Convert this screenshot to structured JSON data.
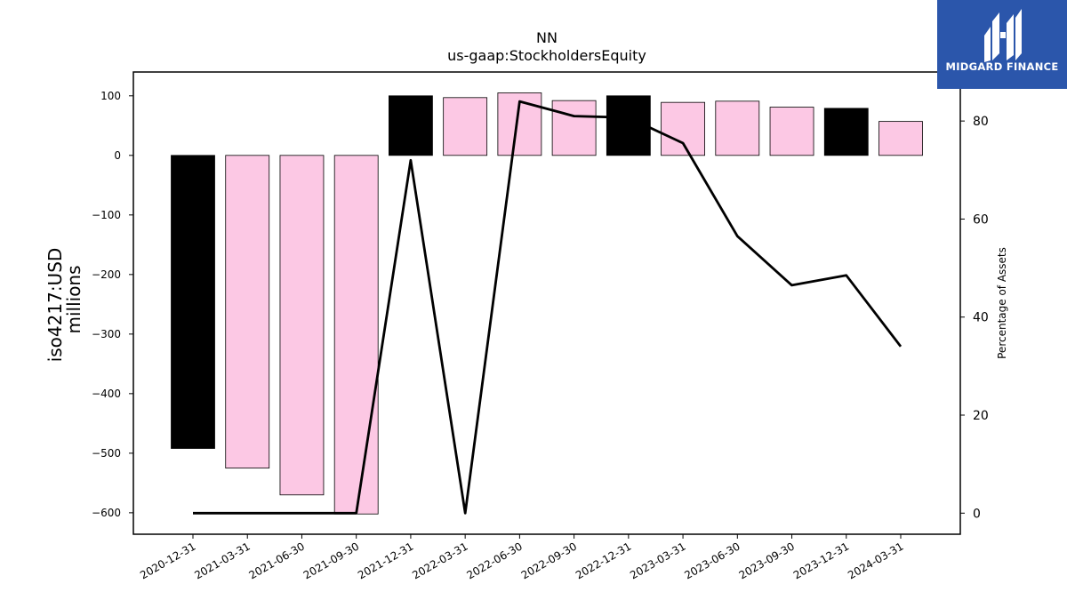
{
  "chart_data": {
    "type": "bar",
    "title": "NN",
    "subtitle": "us-gaap:StockholdersEquity",
    "ylabel": "iso4217:USD",
    "ylabel2": "millions",
    "y2label": "Percentage of Assets",
    "categories": [
      "2020-12-31",
      "2021-03-31",
      "2021-06-30",
      "2021-09-30",
      "2021-12-31",
      "2022-03-31",
      "2022-06-30",
      "2022-09-30",
      "2022-12-31",
      "2023-03-31",
      "2023-06-30",
      "2023-09-30",
      "2023-12-31",
      "2024-03-31"
    ],
    "series": [
      {
        "type": "bar",
        "axis": "left",
        "values": [
          -492,
          -525,
          -570,
          -602,
          100,
          97,
          105,
          92,
          100,
          89,
          91,
          81,
          79,
          57
        ],
        "colors": [
          "#000000",
          "#fcc8e4",
          "#fcc8e4",
          "#fcc8e4",
          "#000000",
          "#fcc8e4",
          "#fcc8e4",
          "#fcc8e4",
          "#000000",
          "#fcc8e4",
          "#fcc8e4",
          "#fcc8e4",
          "#000000",
          "#fcc8e4"
        ]
      },
      {
        "type": "line",
        "axis": "right",
        "color": "#000000",
        "values": [
          0,
          0,
          0,
          0,
          72,
          0,
          84,
          81,
          80.7,
          75.5,
          56.5,
          46.5,
          48.5,
          34
        ]
      }
    ],
    "ylim": [
      -636,
      140
    ],
    "y2lim": [
      -4.3,
      90
    ],
    "yticks": [
      100,
      0,
      -100,
      -200,
      -300,
      -400,
      -500,
      -600
    ],
    "yticklabels": [
      "100",
      "0",
      "−100",
      "−200",
      "−300",
      "−400",
      "−500",
      "−600"
    ],
    "y2ticks": [
      80,
      60,
      40,
      20,
      0
    ],
    "y2ticklabels": [
      "80",
      "60",
      "40",
      "20",
      "0"
    ],
    "grid": false,
    "legend": "none"
  },
  "logo": {
    "text": "MIDGARD FINANCE",
    "icon": "midgard-logo-icon",
    "color": "#2b56ab"
  }
}
